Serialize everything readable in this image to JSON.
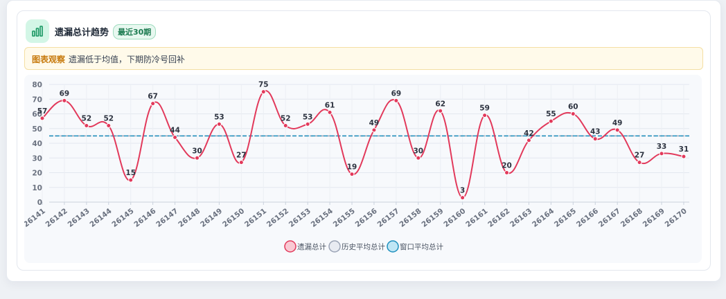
{
  "card": {
    "title": "遗漏总计趋势",
    "badge": "最近30期",
    "observation_label": "图表观察",
    "observation_text": "遗漏低于均值，下期防冷号回补",
    "icon": "bar-chart-icon"
  },
  "colors": {
    "series_main": "#e2395b",
    "series_main_fill": "#f9c9d3",
    "historical_avg": "#9aa3b5",
    "historical_avg_fill": "#e8ebf2",
    "window_avg": "#1d8fbd",
    "window_avg_fill": "#bfe6f5",
    "badge_green": "#1a7a4f"
  },
  "chart_data": {
    "type": "line",
    "categories": [
      "26141",
      "26142",
      "26143",
      "26144",
      "26145",
      "26146",
      "26147",
      "26148",
      "26149",
      "26150",
      "26151",
      "26152",
      "26153",
      "26154",
      "26155",
      "26156",
      "26157",
      "26158",
      "26159",
      "26160",
      "26161",
      "26162",
      "26163",
      "26164",
      "26165",
      "26166",
      "26167",
      "26168",
      "26169",
      "26170"
    ],
    "series": [
      {
        "name": "遗漏总计",
        "values": [
          57,
          69,
          52,
          52,
          15,
          67,
          44,
          30,
          53,
          27,
          75,
          52,
          53,
          61,
          19,
          49,
          69,
          30,
          62,
          3,
          59,
          20,
          42,
          55,
          60,
          43,
          49,
          27,
          33,
          31
        ]
      },
      {
        "name": "历史平均总计",
        "values": [
          45,
          45,
          45,
          45,
          45,
          45,
          45,
          45,
          45,
          45,
          45,
          45,
          45,
          45,
          45,
          45,
          45,
          45,
          45,
          45,
          45,
          45,
          45,
          45,
          45,
          45,
          45,
          45,
          45,
          45
        ]
      },
      {
        "name": "窗口平均总计",
        "values": [
          45,
          45,
          45,
          45,
          45,
          45,
          45,
          45,
          45,
          45,
          45,
          45,
          45,
          45,
          45,
          45,
          45,
          45,
          45,
          45,
          45,
          45,
          45,
          45,
          45,
          45,
          45,
          45,
          45,
          45
        ]
      }
    ],
    "ylim": [
      0,
      80
    ],
    "yticks": [
      0,
      10,
      20,
      30,
      40,
      50,
      60,
      70,
      80
    ],
    "legend_position": "bottom-center",
    "grid": true,
    "data_labels": true
  }
}
